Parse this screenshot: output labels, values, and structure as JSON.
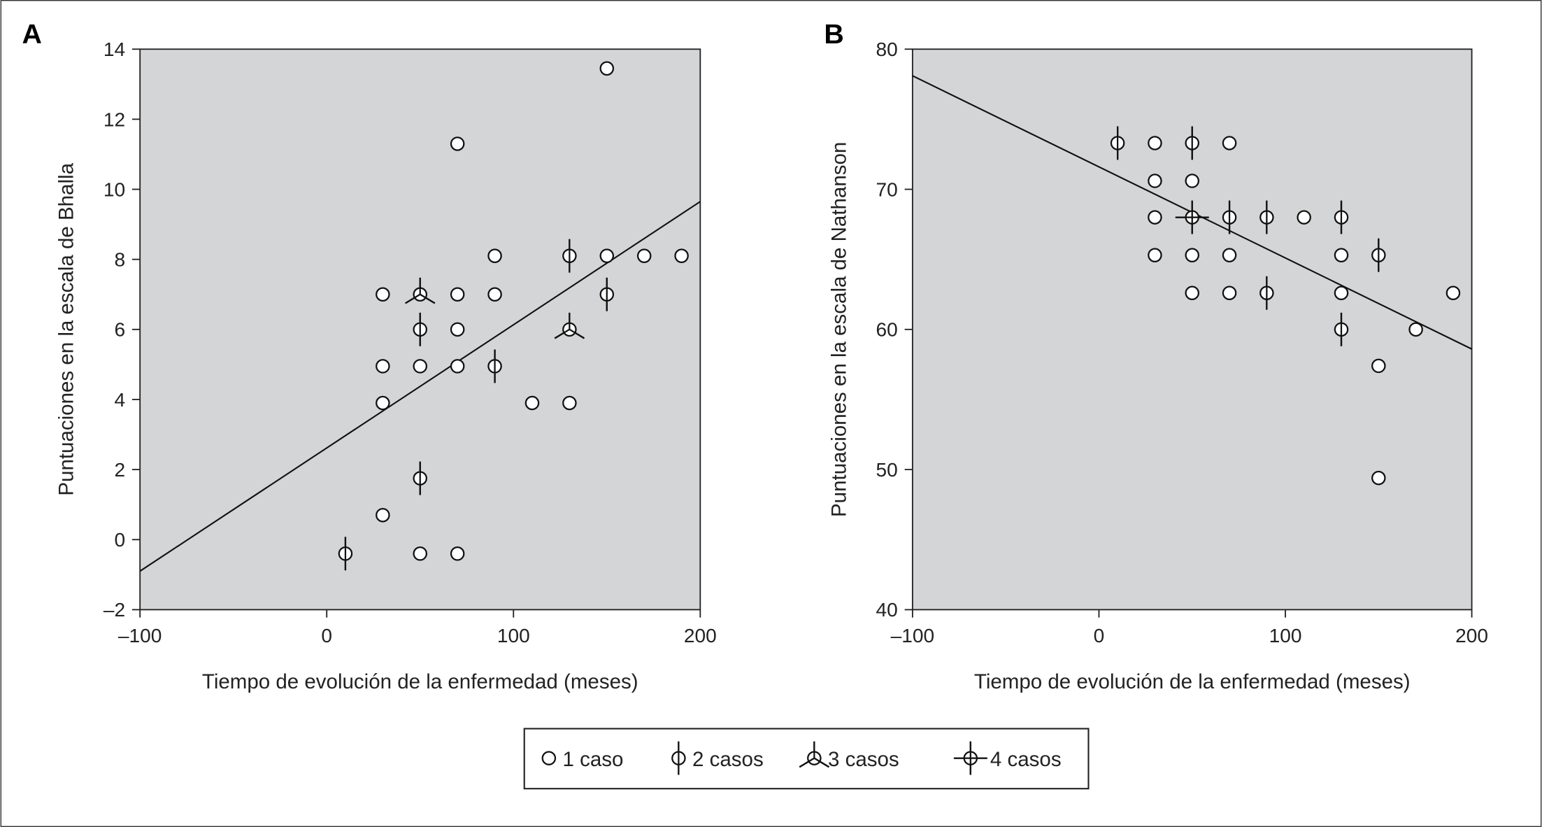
{
  "panels": [
    {
      "label": "A",
      "chart_data": {
        "type": "scatter",
        "xlabel": "Tiempo de evolución de la enfermedad (meses)",
        "ylabel": "Puntuaciones en la escala de Bhalla",
        "xlim": [
          -100,
          200
        ],
        "ylim": [
          -2,
          14
        ],
        "xticks": [
          -100,
          0,
          100,
          200
        ],
        "xtick_labels": [
          "–100",
          "0",
          "100",
          "200"
        ],
        "yticks": [
          -2,
          0,
          2,
          4,
          6,
          8,
          10,
          12,
          14
        ],
        "ytick_labels": [
          "–2",
          "0",
          "2",
          "4",
          "6",
          "8",
          "10",
          "12",
          "14"
        ],
        "background": "#d4d5d7",
        "grid": false,
        "points": [
          {
            "x": 10,
            "y": -0.4,
            "n": 2
          },
          {
            "x": 30,
            "y": 7,
            "n": 1
          },
          {
            "x": 30,
            "y": 4.95,
            "n": 1
          },
          {
            "x": 30,
            "y": 3.9,
            "n": 1
          },
          {
            "x": 30,
            "y": 0.7,
            "n": 1
          },
          {
            "x": 50,
            "y": 7,
            "n": 3
          },
          {
            "x": 50,
            "y": 6,
            "n": 2
          },
          {
            "x": 50,
            "y": 4.95,
            "n": 1
          },
          {
            "x": 50,
            "y": 1.75,
            "n": 2
          },
          {
            "x": 50,
            "y": -0.4,
            "n": 1
          },
          {
            "x": 70,
            "y": 11.3,
            "n": 1
          },
          {
            "x": 70,
            "y": 7,
            "n": 1
          },
          {
            "x": 70,
            "y": 6,
            "n": 1
          },
          {
            "x": 70,
            "y": 4.95,
            "n": 1
          },
          {
            "x": 70,
            "y": -0.4,
            "n": 1
          },
          {
            "x": 90,
            "y": 8.1,
            "n": 1
          },
          {
            "x": 90,
            "y": 7,
            "n": 1
          },
          {
            "x": 90,
            "y": 4.95,
            "n": 2
          },
          {
            "x": 110,
            "y": 3.9,
            "n": 1
          },
          {
            "x": 130,
            "y": 8.1,
            "n": 2
          },
          {
            "x": 130,
            "y": 6,
            "n": 3
          },
          {
            "x": 130,
            "y": 3.9,
            "n": 1
          },
          {
            "x": 150,
            "y": 13.45,
            "n": 1
          },
          {
            "x": 150,
            "y": 8.1,
            "n": 1
          },
          {
            "x": 150,
            "y": 7,
            "n": 2
          },
          {
            "x": 170,
            "y": 8.1,
            "n": 1
          },
          {
            "x": 190,
            "y": 8.1,
            "n": 1
          }
        ],
        "fit_line": [
          [
            -100,
            -0.9
          ],
          [
            200,
            9.65
          ]
        ]
      }
    },
    {
      "label": "B",
      "chart_data": {
        "type": "scatter",
        "xlabel": "Tiempo de evolución de la enfermedad (meses)",
        "ylabel": "Puntuaciones en la escala de Nathanson",
        "xlim": [
          -100,
          200
        ],
        "ylim": [
          40,
          80
        ],
        "xticks": [
          -100,
          0,
          100,
          200
        ],
        "xtick_labels": [
          "–100",
          "0",
          "100",
          "200"
        ],
        "yticks": [
          40,
          50,
          60,
          70,
          80
        ],
        "ytick_labels": [
          "40",
          "50",
          "60",
          "70",
          "80"
        ],
        "background": "#d4d5d7",
        "grid": false,
        "points": [
          {
            "x": 10,
            "y": 73.3,
            "n": 2
          },
          {
            "x": 30,
            "y": 73.3,
            "n": 1
          },
          {
            "x": 30,
            "y": 70.6,
            "n": 1
          },
          {
            "x": 30,
            "y": 68,
            "n": 1
          },
          {
            "x": 30,
            "y": 65.3,
            "n": 1
          },
          {
            "x": 50,
            "y": 73.3,
            "n": 2
          },
          {
            "x": 50,
            "y": 70.6,
            "n": 1
          },
          {
            "x": 50,
            "y": 68,
            "n": 4
          },
          {
            "x": 50,
            "y": 65.3,
            "n": 1
          },
          {
            "x": 50,
            "y": 62.6,
            "n": 1
          },
          {
            "x": 70,
            "y": 73.3,
            "n": 1
          },
          {
            "x": 70,
            "y": 68,
            "n": 2
          },
          {
            "x": 70,
            "y": 65.3,
            "n": 1
          },
          {
            "x": 70,
            "y": 62.6,
            "n": 1
          },
          {
            "x": 90,
            "y": 68,
            "n": 2
          },
          {
            "x": 90,
            "y": 62.6,
            "n": 2
          },
          {
            "x": 110,
            "y": 68,
            "n": 1
          },
          {
            "x": 130,
            "y": 68,
            "n": 2
          },
          {
            "x": 130,
            "y": 65.3,
            "n": 1
          },
          {
            "x": 130,
            "y": 62.6,
            "n": 1
          },
          {
            "x": 130,
            "y": 60,
            "n": 2
          },
          {
            "x": 150,
            "y": 65.3,
            "n": 2
          },
          {
            "x": 150,
            "y": 57.4,
            "n": 1
          },
          {
            "x": 150,
            "y": 49.4,
            "n": 1
          },
          {
            "x": 170,
            "y": 60,
            "n": 1
          },
          {
            "x": 190,
            "y": 62.6,
            "n": 1
          }
        ],
        "fit_line": [
          [
            -100,
            78.1
          ],
          [
            200,
            58.6
          ]
        ]
      }
    }
  ],
  "legend": {
    "placement": "bottom-center",
    "items": [
      {
        "n": 1,
        "label": "1 caso"
      },
      {
        "n": 2,
        "label": "2 casos"
      },
      {
        "n": 3,
        "label": "3 casos"
      },
      {
        "n": 4,
        "label": "4 casos"
      }
    ]
  }
}
